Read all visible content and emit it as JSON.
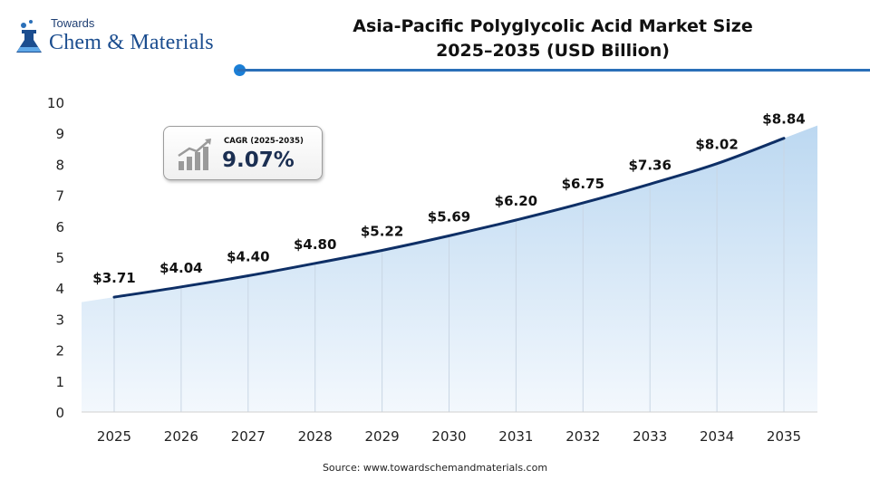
{
  "brand": {
    "line1": "Towards",
    "line2": "Chem & Materials",
    "color": "#1b4d8f"
  },
  "title": {
    "line1": "Asia-Pacific Polyglycolic Acid Market Size",
    "line2": "2025–2035 (USD Billion)"
  },
  "cagr": {
    "label": "CAGR (2025-2035)",
    "value": "9.07%",
    "icon": "rising-bar-chart-icon"
  },
  "source": "Source:  www.towardschemandmaterials.com",
  "colors": {
    "line": "#0e2f66",
    "area_top": "#bcd8f1",
    "area_bottom": "#f3f8fd",
    "accent": "#1b7fd6"
  },
  "chart_data": {
    "type": "line",
    "title": "Asia-Pacific Polyglycolic Acid Market Size 2025–2035 (USD Billion)",
    "x": [
      "2025",
      "2026",
      "2027",
      "2028",
      "2029",
      "2030",
      "2031",
      "2032",
      "2033",
      "2034",
      "2035"
    ],
    "series": [
      {
        "values": [
          3.71,
          4.04,
          4.4,
          4.8,
          5.22,
          5.69,
          6.2,
          6.75,
          7.36,
          8.02,
          8.84
        ],
        "labels": [
          "$3.71",
          "$4.04",
          "$4.40",
          "$4.80",
          "$5.22",
          "$5.69",
          "$6.20",
          "$6.75",
          "$7.36",
          "$8.02",
          "$8.84"
        ]
      }
    ],
    "yticks": [
      "0",
      "1",
      "2",
      "3",
      "4",
      "5",
      "6",
      "7",
      "8",
      "9",
      "10"
    ],
    "ylim": [
      0,
      10
    ],
    "grid": "vertical",
    "legend": "none",
    "fill": "gradient-area"
  }
}
